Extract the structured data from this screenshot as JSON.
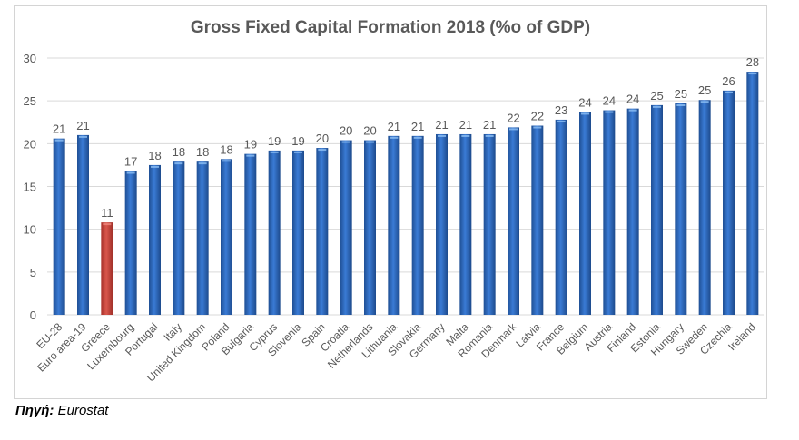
{
  "chart_data": {
    "type": "bar",
    "title": "Gross Fixed Capital Formation 2018 (%o of GDP)",
    "xlabel": "",
    "ylabel": "",
    "ylim": [
      0,
      30
    ],
    "yticks": [
      0,
      5,
      10,
      15,
      20,
      25,
      30
    ],
    "grid": true,
    "legend": "none",
    "categories": [
      "EU-28",
      "Euro area-19",
      "Greece",
      "Luxembourg",
      "Portugal",
      "Italy",
      "United Kingdom",
      "Poland",
      "Bulgaria",
      "Cyprus",
      "Slovenia",
      "Spain",
      "Croatia",
      "Netherlands",
      "Lithuania",
      "Slovakia",
      "Germany",
      "Malta",
      "Romania",
      "Denmark",
      "Latvia",
      "France",
      "Belgium",
      "Austria",
      "Finland",
      "Estonia",
      "Hungary",
      "Sweden",
      "Czechia",
      "Ireland"
    ],
    "values": [
      20.6,
      21.0,
      10.8,
      16.8,
      17.5,
      17.9,
      17.9,
      18.2,
      18.8,
      19.2,
      19.2,
      19.5,
      20.4,
      20.4,
      20.9,
      20.9,
      21.1,
      21.1,
      21.1,
      21.9,
      22.1,
      22.8,
      23.7,
      23.9,
      24.1,
      24.5,
      24.7,
      25.1,
      26.2,
      28.4
    ],
    "data_labels": [
      "21",
      "21",
      "11",
      "17",
      "18",
      "18",
      "18",
      "18",
      "19",
      "19",
      "19",
      "20",
      "20",
      "20",
      "21",
      "21",
      "21",
      "21",
      "21",
      "22",
      "22",
      "23",
      "24",
      "24",
      "24",
      "25",
      "25",
      "25",
      "26",
      "28"
    ],
    "highlight": {
      "category": "Greece",
      "color": "#c0392b"
    },
    "colors": {
      "bar": "#2e6bc2",
      "bar_highlight": "#c94a40",
      "grid": "#d9d9d9",
      "text": "#595959"
    }
  },
  "source": {
    "label": "Πηγή:",
    "value": "Eurostat"
  }
}
